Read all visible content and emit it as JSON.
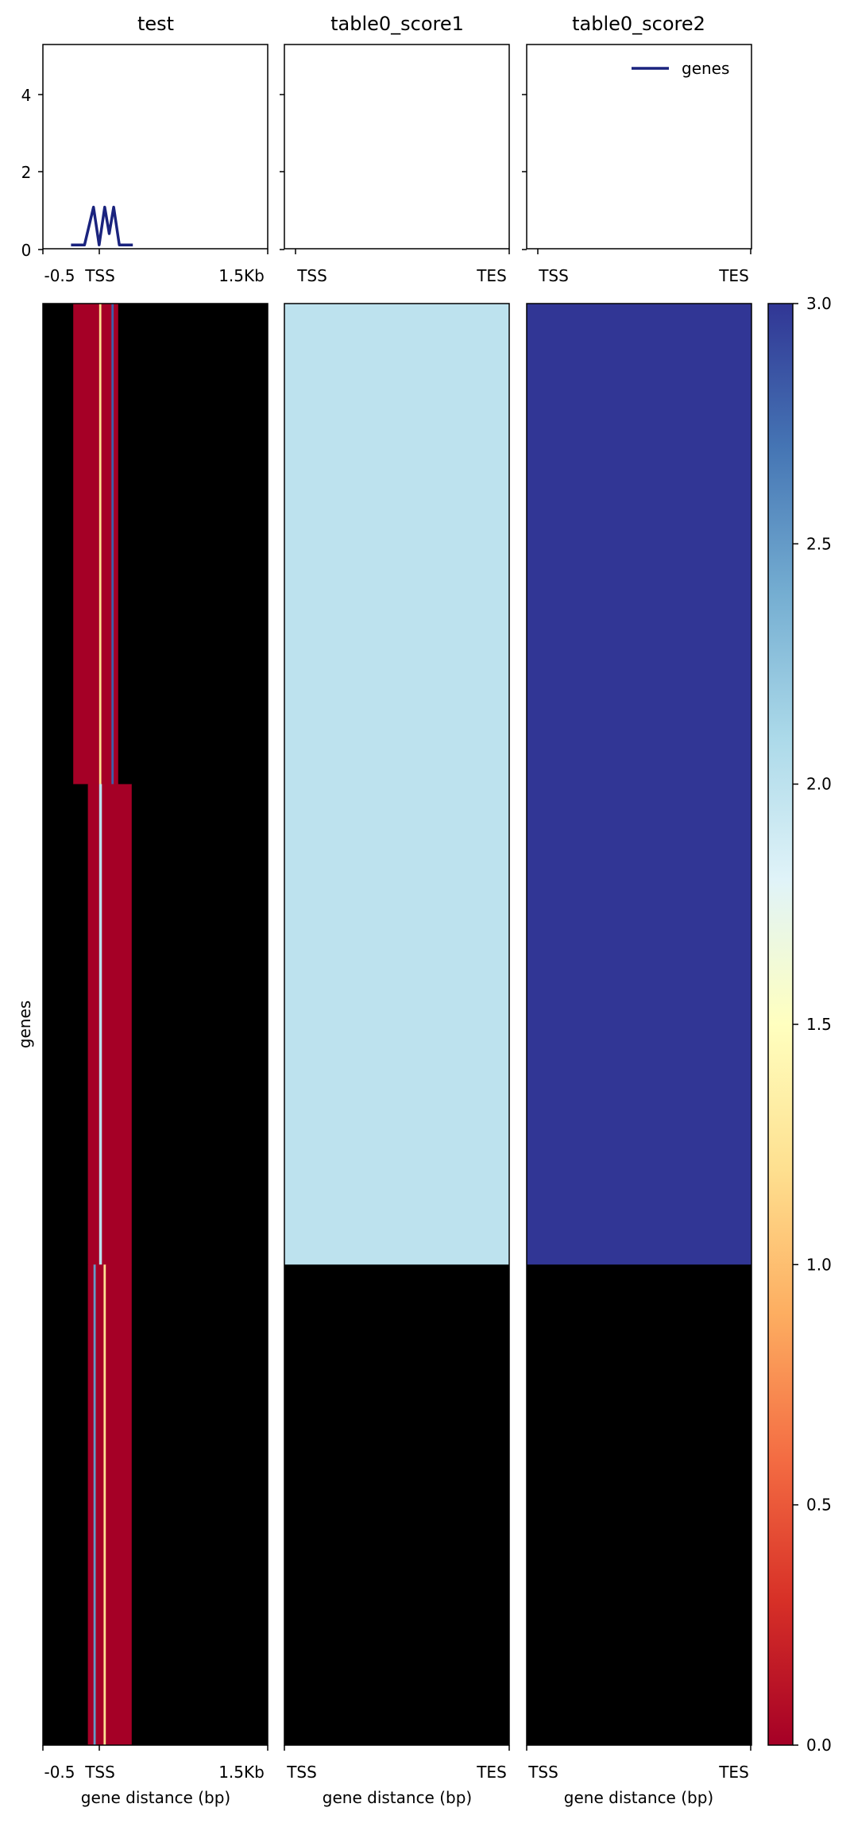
{
  "chart_data": [
    {
      "type": "line",
      "title": "test",
      "xlabel": "",
      "ylabel": "",
      "x_tick_labels": [
        "-0.5",
        "TSS",
        "1.5Kb"
      ],
      "xlim": [
        -500,
        1500
      ],
      "ylim": [
        -0.1,
        5.3
      ],
      "y_ticks": [
        0,
        2,
        4
      ],
      "series": [
        {
          "name": "genes",
          "color": "#1a237e",
          "x": [
            -250,
            -130,
            -50,
            0,
            50,
            90,
            130,
            180,
            240,
            300
          ],
          "y": [
            0,
            0,
            1,
            0,
            1,
            0.3,
            1,
            0,
            0,
            0
          ]
        }
      ]
    },
    {
      "type": "line",
      "title": "table0_score1",
      "x_tick_labels": [
        "TSS",
        "TES"
      ],
      "y_ticks": [
        0,
        2,
        4
      ],
      "series": []
    },
    {
      "type": "line",
      "title": "table0_score2",
      "legend": [
        "genes"
      ],
      "legend_position": "top-right",
      "x_tick_labels": [
        "TSS",
        "TES"
      ],
      "y_ticks": [
        0,
        2,
        4
      ],
      "series": []
    },
    {
      "type": "heatmap",
      "title": "",
      "ylabel": "genes",
      "xlabel": "gene distance (bp)",
      "x_tick_labels": [
        "-0.5",
        "TSS",
        "1.5Kb"
      ],
      "xlim": [
        -500,
        1500
      ],
      "rows": 3,
      "row_segments": [
        [
          {
            "x0": -500,
            "x1": -230,
            "value": null
          },
          {
            "x0": -230,
            "x1": 0,
            "value": 0
          },
          {
            "x0": 0,
            "x1": 20,
            "value": 1.2
          },
          {
            "x0": 20,
            "x1": 110,
            "value": 0
          },
          {
            "x0": 110,
            "x1": 130,
            "value": 2.8
          },
          {
            "x0": 130,
            "x1": 170,
            "value": 0
          },
          {
            "x0": 170,
            "x1": 1500,
            "value": null
          }
        ],
        [
          {
            "x0": -500,
            "x1": -100,
            "value": null
          },
          {
            "x0": -100,
            "x1": 0,
            "value": 0
          },
          {
            "x0": 0,
            "x1": 25,
            "value": 2.0
          },
          {
            "x0": 25,
            "x1": 290,
            "value": 0
          },
          {
            "x0": 290,
            "x1": 1500,
            "value": null
          }
        ],
        [
          {
            "x0": -500,
            "x1": -100,
            "value": null
          },
          {
            "x0": -100,
            "x1": -50,
            "value": 0
          },
          {
            "x0": -50,
            "x1": -30,
            "value": 2.5
          },
          {
            "x0": -30,
            "x1": 40,
            "value": 0
          },
          {
            "x0": 40,
            "x1": 60,
            "value": 1.2
          },
          {
            "x0": 60,
            "x1": 290,
            "value": 0
          },
          {
            "x0": 290,
            "x1": 1500,
            "value": null
          }
        ]
      ]
    },
    {
      "type": "heatmap",
      "xlabel": "gene distance (bp)",
      "x_tick_labels": [
        "TSS",
        "TES"
      ],
      "rows": 3,
      "row_values": [
        2,
        2,
        null
      ]
    },
    {
      "type": "heatmap",
      "xlabel": "gene distance (bp)",
      "x_tick_labels": [
        "TSS",
        "TES"
      ],
      "rows": 3,
      "row_values": [
        3,
        3,
        null
      ]
    }
  ],
  "colorbar": {
    "cmap": "RdYlBu",
    "range": [
      0,
      3
    ],
    "tick_labels": [
      "0.0",
      "0.5",
      "1.0",
      "1.5",
      "2.0",
      "2.5",
      "3.0"
    ],
    "missing_color": "#000000"
  }
}
